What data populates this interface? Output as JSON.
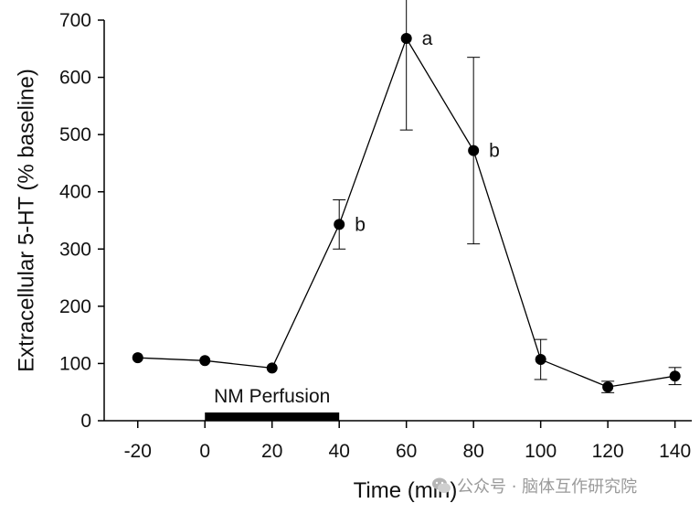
{
  "chart_data": {
    "type": "line",
    "xlabel": "Time (min)",
    "ylabel": "Extracellular 5-HT (% baseline)",
    "xlim": [
      -30,
      145
    ],
    "ylim": [
      0,
      700
    ],
    "x_ticks": [
      -20,
      0,
      20,
      40,
      60,
      80,
      100,
      120,
      140
    ],
    "y_ticks": [
      0,
      100,
      200,
      300,
      400,
      500,
      600,
      700
    ],
    "x_tick_labels": [
      "-20",
      "0",
      "20",
      "40",
      "60",
      "80",
      "100",
      "120",
      "140"
    ],
    "y_tick_labels": [
      "0",
      "100",
      "200",
      "300",
      "400",
      "500",
      "600",
      "700"
    ],
    "series": [
      {
        "name": "5-HT",
        "points": [
          {
            "x": -20,
            "y": 110,
            "err": 0,
            "label": ""
          },
          {
            "x": 0,
            "y": 105,
            "err": 0,
            "label": ""
          },
          {
            "x": 20,
            "y": 92,
            "err": 0,
            "label": ""
          },
          {
            "x": 40,
            "y": 343,
            "err": 43,
            "label": "b"
          },
          {
            "x": 60,
            "y": 668,
            "err": 160,
            "label": "a"
          },
          {
            "x": 80,
            "y": 472,
            "err": 163,
            "label": "b"
          },
          {
            "x": 100,
            "y": 107,
            "err": 35,
            "label": ""
          },
          {
            "x": 120,
            "y": 59,
            "err": 10,
            "label": ""
          },
          {
            "x": 140,
            "y": 78,
            "err": 15,
            "label": ""
          }
        ]
      }
    ],
    "perfusion": {
      "label": "NM Perfusion",
      "start": 0,
      "end": 40
    }
  },
  "watermark": {
    "text": "公众号 · 脑体互作研究院",
    "icon": "wechat-icon"
  }
}
